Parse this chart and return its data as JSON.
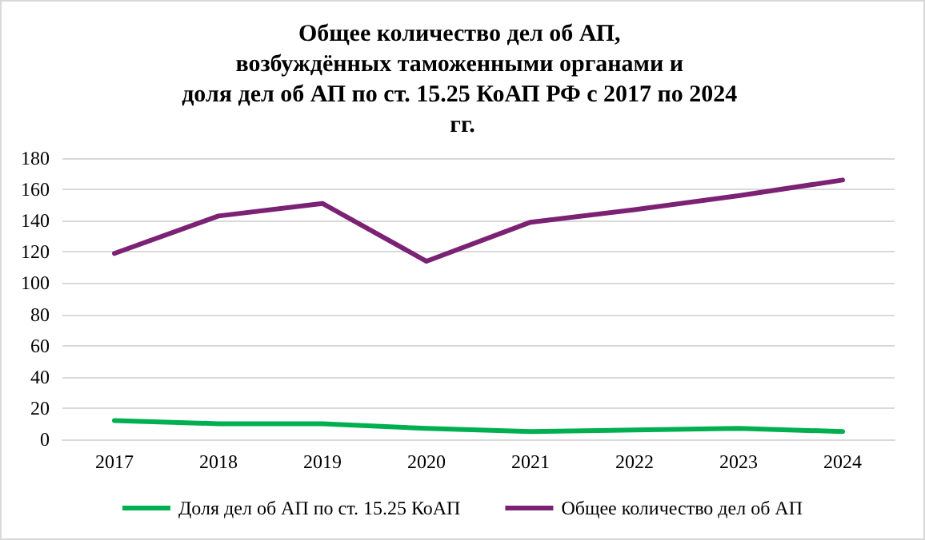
{
  "chart_data": {
    "type": "line",
    "title": "Общее количество дел об АП, возбуждённых таможенными органами и доля дел об АП по ст. 15.25 КоАП РФ с 2017 по 2024 гг.",
    "categories": [
      "2017",
      "2018",
      "2019",
      "2020",
      "2021",
      "2022",
      "2023",
      "2024"
    ],
    "series": [
      {
        "name": "Доля дел об АП по ст. 15.25 КоАП",
        "color": "#00b050",
        "values": [
          12,
          10,
          10,
          7,
          5,
          6,
          7,
          5
        ]
      },
      {
        "name": "Общее количество дел об АП",
        "color": "#7b2274",
        "values": [
          119,
          143,
          151,
          114,
          139,
          147,
          156,
          166
        ]
      }
    ],
    "ylim": [
      0,
      180
    ],
    "yticks": [
      0,
      20,
      40,
      60,
      80,
      100,
      120,
      140,
      160,
      180
    ],
    "grid": "y",
    "legend": "bottom",
    "marker": "none",
    "line_style": "solid"
  }
}
